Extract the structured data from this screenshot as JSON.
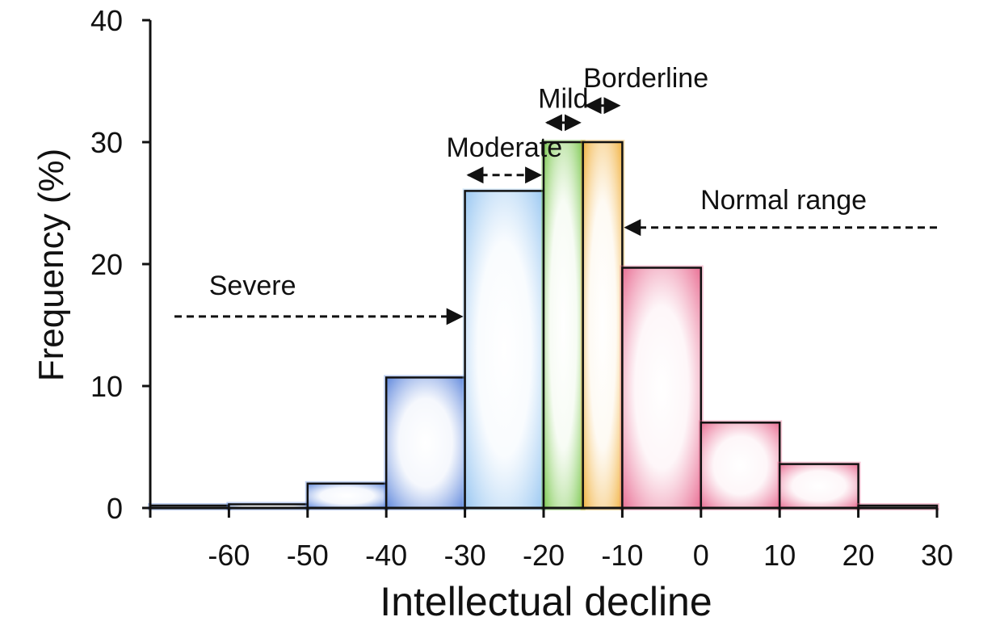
{
  "chart_data": {
    "type": "bar",
    "title": "",
    "xlabel": "Intellectual decline",
    "ylabel": "Frequency (%)",
    "xlim": [
      -70,
      30
    ],
    "ylim": [
      0,
      40
    ],
    "x_ticks": [
      -60,
      -50,
      -40,
      -30,
      -20,
      -10,
      0,
      10,
      20,
      30
    ],
    "x_tick_labels": [
      "-60",
      "-50",
      "-40",
      "-30",
      "-20",
      "-10",
      "0",
      "10",
      "20",
      "30"
    ],
    "y_ticks": [
      0,
      10,
      20,
      30,
      40
    ],
    "y_tick_labels": [
      "0",
      "10",
      "20",
      "30",
      "40"
    ],
    "grid": false,
    "bins": [
      {
        "from": -70,
        "to": -60,
        "value": 0.1,
        "category": "Severe",
        "color": "#4a78d8"
      },
      {
        "from": -60,
        "to": -50,
        "value": 0.3,
        "category": "Severe",
        "color": "#4a78d8"
      },
      {
        "from": -50,
        "to": -40,
        "value": 2,
        "category": "Severe",
        "color": "#4a78d8"
      },
      {
        "from": -40,
        "to": -30,
        "value": 10.7,
        "category": "Severe",
        "color": "#4a78d8"
      },
      {
        "from": -30,
        "to": -20,
        "value": 26,
        "category": "Moderate",
        "color": "#8cc0f0"
      },
      {
        "from": -20,
        "to": -15,
        "value": 30,
        "category": "Mild",
        "color": "#6cc23a"
      },
      {
        "from": -15,
        "to": -10,
        "value": 30,
        "category": "Borderline",
        "color": "#f0a828"
      },
      {
        "from": -10,
        "to": 0,
        "value": 19.7,
        "category": "Normal range",
        "color": "#e65c86"
      },
      {
        "from": 0,
        "to": 10,
        "value": 7,
        "category": "Normal range",
        "color": "#e65c86"
      },
      {
        "from": 10,
        "to": 20,
        "value": 3.6,
        "category": "Normal range",
        "color": "#e65c86"
      },
      {
        "from": 20,
        "to": 30,
        "value": 0.1,
        "category": "Normal range",
        "color": "#e65c86"
      }
    ],
    "annotations": [
      {
        "text": "Severe",
        "arrow": "right",
        "x_from": -70,
        "x_to": -30,
        "y": 15.7,
        "label_x": -57,
        "label_y": 17.5
      },
      {
        "text": "Moderate",
        "arrow": "both",
        "x_from": -30,
        "x_to": -20,
        "y": 27.3,
        "label_x": -25,
        "label_y": 28.8
      },
      {
        "text": "Mild",
        "arrow": "both",
        "x_from": -20,
        "x_to": -15,
        "y": 31.6,
        "label_x": -17.5,
        "label_y": 32.8
      },
      {
        "text": "Borderline",
        "arrow": "both",
        "x_from": -15,
        "x_to": -10,
        "y": 33,
        "label_x": -7,
        "label_y": 34.5
      },
      {
        "text": "Normal range",
        "arrow": "left",
        "x_from": 30,
        "x_to": -10,
        "y": 23,
        "label_x": 10.5,
        "label_y": 24.5
      }
    ]
  }
}
